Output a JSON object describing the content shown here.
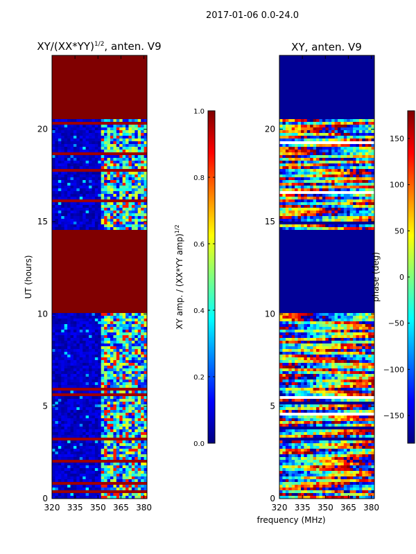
{
  "figure_title": "2017-01-06 0.0-24.0",
  "shared_xlabel": "frequency (MHz)",
  "chart_data": [
    {
      "type": "heatmap",
      "title_main": "XY/(XX*YY)",
      "title_sup": "1/2",
      "title_tail": ", anten. V9",
      "xlabel": "",
      "ylabel": "UT (hours)",
      "xlim": [
        320,
        382
      ],
      "ylim": [
        0,
        24
      ],
      "xticks": [
        320,
        335,
        350,
        365,
        380
      ],
      "yticks": [
        0,
        5,
        10,
        15,
        20
      ],
      "colorbar": {
        "label_main": "XY amp. / (XX*YY amp)",
        "label_sup": "1/2",
        "range": [
          0.0,
          1.0
        ],
        "ticks": [
          "0.0",
          "0.2",
          "0.4",
          "0.6",
          "0.8",
          "1.0"
        ],
        "colormap": "jet"
      },
      "saturated_bands_hours": [
        [
          10.0,
          14.6
        ],
        [
          20.6,
          24.0
        ]
      ],
      "active_band_mhz": [
        353,
        382
      ],
      "colormap_stops": [
        "#00007f",
        "#0000ff",
        "#007fff",
        "#00ffff",
        "#7fff7f",
        "#ffff00",
        "#ff7f00",
        "#ff0000",
        "#7f0000"
      ]
    },
    {
      "type": "heatmap",
      "title_main": "XY, anten. V9",
      "xlabel": "frequency (MHz)",
      "ylabel": "",
      "xlim": [
        320,
        382
      ],
      "ylim": [
        0,
        24
      ],
      "xticks": [
        320,
        335,
        350,
        365,
        380
      ],
      "yticks": [
        0,
        5,
        10,
        15,
        20
      ],
      "colorbar": {
        "label_main": "phase (deg)",
        "range": [
          -180,
          180
        ],
        "ticks": [
          "−150",
          "−100",
          "−50",
          "0",
          "50",
          "100",
          "150"
        ],
        "tick_values": [
          -150,
          -100,
          -50,
          0,
          50,
          100,
          150
        ],
        "colormap": "jet"
      },
      "flagged_bands_hours": [
        [
          10.0,
          14.6
        ],
        [
          20.6,
          24.0
        ]
      ]
    }
  ]
}
